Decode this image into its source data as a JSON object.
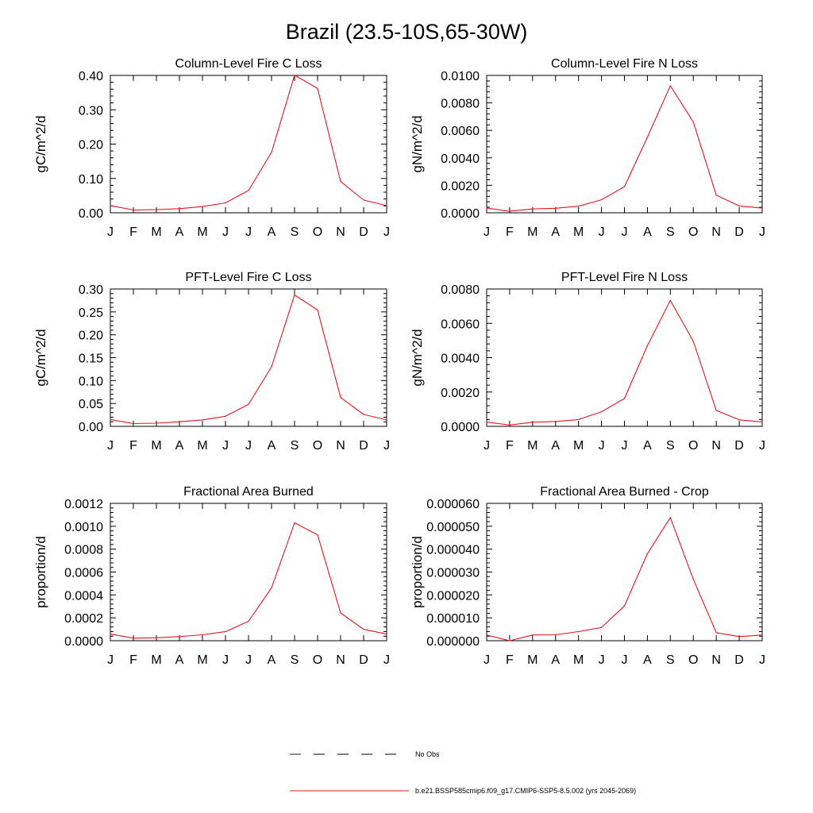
{
  "figure": {
    "title": "Brazil (23.5-10S,65-30W)"
  },
  "chart_data": [
    {
      "type": "line",
      "title": "Column-Level Fire C Loss",
      "ylabel": "gC/m^2/d",
      "x": [
        "J",
        "F",
        "M",
        "A",
        "M",
        "J",
        "J",
        "A",
        "S",
        "O",
        "N",
        "D",
        "J"
      ],
      "ylim": [
        0,
        0.4
      ],
      "yticks": [
        "0.00",
        "0.10",
        "0.20",
        "0.30",
        "0.40"
      ],
      "series": [
        {
          "values": [
            0.021,
            0.008,
            0.009,
            0.012,
            0.018,
            0.029,
            0.065,
            0.176,
            0.401,
            0.362,
            0.091,
            0.037,
            0.021
          ]
        }
      ]
    },
    {
      "type": "line",
      "title": "Column-Level Fire N Loss",
      "ylabel": "gN/m^2/d",
      "x": [
        "J",
        "F",
        "M",
        "A",
        "M",
        "J",
        "J",
        "A",
        "S",
        "O",
        "N",
        "D",
        "J"
      ],
      "ylim": [
        0,
        0.01
      ],
      "yticks": [
        "0.0000",
        "0.0020",
        "0.0040",
        "0.0060",
        "0.0080",
        "0.0100"
      ],
      "series": [
        {
          "values": [
            0.00034,
            0.00011,
            0.00028,
            0.00033,
            0.00048,
            0.00095,
            0.0019,
            0.0055,
            0.00925,
            0.0066,
            0.00128,
            0.0005,
            0.00034
          ]
        }
      ]
    },
    {
      "type": "line",
      "title": "PFT-Level Fire C Loss",
      "ylabel": "gC/m^2/d",
      "x": [
        "J",
        "F",
        "M",
        "A",
        "M",
        "J",
        "J",
        "A",
        "S",
        "O",
        "N",
        "D",
        "J"
      ],
      "ylim": [
        0,
        0.3
      ],
      "yticks": [
        "0.00",
        "0.05",
        "0.10",
        "0.15",
        "0.20",
        "0.25",
        "0.30"
      ],
      "series": [
        {
          "values": [
            0.015,
            0.006,
            0.007,
            0.01,
            0.014,
            0.022,
            0.048,
            0.13,
            0.287,
            0.254,
            0.063,
            0.026,
            0.014
          ]
        }
      ]
    },
    {
      "type": "line",
      "title": "PFT-Level Fire N Loss",
      "ylabel": "gN/m^2/d",
      "x": [
        "J",
        "F",
        "M",
        "A",
        "M",
        "J",
        "J",
        "A",
        "S",
        "O",
        "N",
        "D",
        "J"
      ],
      "ylim": [
        0,
        0.008
      ],
      "yticks": [
        "0.0000",
        "0.0020",
        "0.0040",
        "0.0060",
        "0.0080"
      ],
      "series": [
        {
          "values": [
            0.00025,
            8e-05,
            0.00024,
            0.00028,
            0.0004,
            0.00085,
            0.00162,
            0.0047,
            0.00734,
            0.00495,
            0.00093,
            0.00038,
            0.00026
          ]
        }
      ]
    },
    {
      "type": "line",
      "title": "Fractional Area Burned",
      "ylabel": "proportion/d",
      "x": [
        "J",
        "F",
        "M",
        "A",
        "M",
        "J",
        "J",
        "A",
        "S",
        "O",
        "N",
        "D",
        "J"
      ],
      "ylim": [
        0,
        0.0012
      ],
      "yticks": [
        "0.0000",
        "0.0002",
        "0.0004",
        "0.0006",
        "0.0008",
        "0.0010",
        "0.0012"
      ],
      "series": [
        {
          "values": [
            5.8e-05,
            2.2e-05,
            2.6e-05,
            3.6e-05,
            5.2e-05,
            7.9e-05,
            0.00017,
            0.000462,
            0.00103,
            0.000925,
            0.000243,
            9.9e-05,
            5.8e-05
          ]
        }
      ]
    },
    {
      "type": "line",
      "title": "Fractional Area Burned - Crop",
      "ylabel": "proportion/d",
      "x": [
        "J",
        "F",
        "M",
        "A",
        "M",
        "J",
        "J",
        "A",
        "S",
        "O",
        "N",
        "D",
        "J"
      ],
      "ylim": [
        0,
        6e-05
      ],
      "yticks": [
        "0.000000",
        "0.000010",
        "0.000020",
        "0.000030",
        "0.000040",
        "0.000050",
        "0.000060"
      ],
      "series": [
        {
          "values": [
            2.5e-06,
            0.0,
            2.5e-06,
            2.6e-06,
            4e-06,
            5.8e-06,
            1.52e-05,
            3.8e-05,
            5.38e-05,
            2.68e-05,
            3.5e-06,
            1.8e-06,
            2.5e-06
          ]
        }
      ]
    }
  ],
  "legend": [
    {
      "label": "No Obs",
      "style": "dashed",
      "color": "#000000"
    },
    {
      "label": "b.e21.BSSP585cmip6.f09_g17.CMIP6-SSP5-8.5.002 (yrs 2045-2069)",
      "style": "solid",
      "color": "#e8141c"
    }
  ]
}
